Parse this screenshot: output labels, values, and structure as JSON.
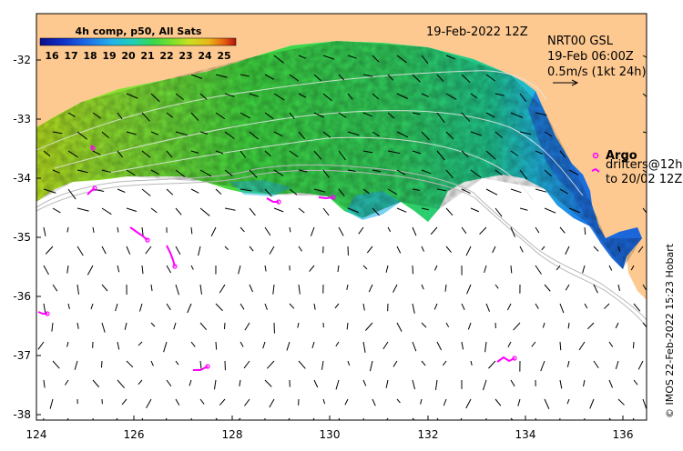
{
  "map": {
    "lon_ticks": [
      "124",
      "126",
      "128",
      "130",
      "132",
      "134",
      "136"
    ],
    "lat_ticks": [
      "-32",
      "-33",
      "-34",
      "-35",
      "-36",
      "-37",
      "-38"
    ],
    "lon_range": [
      124,
      136.5
    ],
    "lat_range": [
      -31.3,
      -38.1
    ],
    "land_color": "#fdc990",
    "sea_color": "#ffffff",
    "argo_color": "#ff00ff"
  },
  "colorbar": {
    "title": "4h comp, p50, All Sats",
    "labels": [
      "16",
      "17",
      "18",
      "19",
      "20",
      "21",
      "22",
      "23",
      "24",
      "25"
    ],
    "colors": [
      "#0b0f8c",
      "#1030c8",
      "#1e72e8",
      "#22b4e8",
      "#1fd0b0",
      "#3ad84a",
      "#78e02a",
      "#c8e020",
      "#e8b818",
      "#e86010",
      "#b01010"
    ]
  },
  "labels": {
    "date": "19-Feb-2022 12Z",
    "product_line1": "NRT00 GSL",
    "product_line2": "19-Feb 06:00Z",
    "product_line3": "0.5m/s (1kt 24h)",
    "argo": "Argo",
    "drifters_line1": "drifters@12h",
    "drifters_line2": "to 20/02 12Z",
    "credit": "© IMOS 22-Feb-2022 15:23 Hobart"
  }
}
